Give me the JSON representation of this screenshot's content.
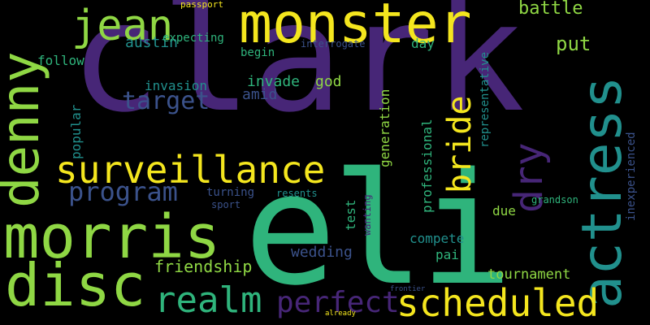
{
  "palette": {
    "background": "#000000",
    "purple": "#472677",
    "darkblue": "#3b528b",
    "teal": "#21908d",
    "green": "#2fb47c",
    "lime": "#8fd744",
    "yellow": "#f4e61e",
    "violet": "#440154"
  },
  "words": {
    "clark": "clark",
    "eli": "eli",
    "monster": "monster",
    "actress": "actress",
    "denny": "denny",
    "morris": "morris",
    "disc": "disc",
    "surveillance": "surveillance",
    "jean": "jean",
    "scheduled": "scheduled",
    "realm": "realm",
    "dry": "dry",
    "bride": "bride",
    "perfect": "perfect",
    "program": "program",
    "target": "target",
    "friendship": "friendship",
    "tournament": "tournament",
    "battle": "battle",
    "put": "put",
    "austin": "austin",
    "follow": "follow",
    "invade": "invade",
    "god": "god",
    "amid": "amid",
    "invasion": "invasion",
    "popular": "popular",
    "begin": "begin",
    "expecting": "expecting",
    "interrogate": "interrogate",
    "day": "day",
    "generation": "generation",
    "professional": "professional",
    "representative": "representative",
    "inexperienced": "inexperienced",
    "test": "test",
    "wanting": "wanting",
    "compete": "compete",
    "pair": "pair",
    "wedding": "wedding",
    "due": "due",
    "grandson": "grandson",
    "turning": "turning",
    "sport": "sport",
    "resents": "resents",
    "passport": "passport",
    "already": "already",
    "frontier": "frontier"
  }
}
